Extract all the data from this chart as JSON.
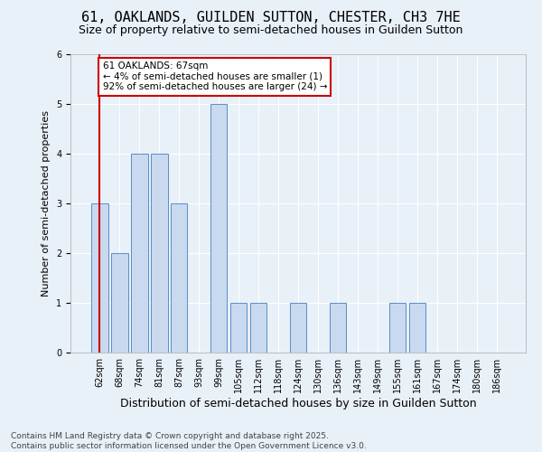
{
  "title": "61, OAKLANDS, GUILDEN SUTTON, CHESTER, CH3 7HE",
  "subtitle": "Size of property relative to semi-detached houses in Guilden Sutton",
  "xlabel": "Distribution of semi-detached houses by size in Guilden Sutton",
  "ylabel": "Number of semi-detached properties",
  "categories": [
    "62sqm",
    "68sqm",
    "74sqm",
    "81sqm",
    "87sqm",
    "93sqm",
    "99sqm",
    "105sqm",
    "112sqm",
    "118sqm",
    "124sqm",
    "130sqm",
    "136sqm",
    "143sqm",
    "149sqm",
    "155sqm",
    "161sqm",
    "167sqm",
    "174sqm",
    "180sqm",
    "186sqm"
  ],
  "values": [
    3,
    2,
    4,
    4,
    3,
    0,
    5,
    1,
    1,
    0,
    1,
    0,
    1,
    0,
    0,
    1,
    1,
    0,
    0,
    0,
    0
  ],
  "bar_color": "#c9d9f0",
  "bar_edge_color": "#5b8ec4",
  "background_color": "#e8f0f8",
  "annotation_text": "61 OAKLANDS: 67sqm\n← 4% of semi-detached houses are smaller (1)\n92% of semi-detached houses are larger (24) →",
  "annotation_box_facecolor": "#ffffff",
  "annotation_border_color": "#cc0000",
  "marker_line_index": 0,
  "marker_line_color": "#cc0000",
  "footer_text": "Contains HM Land Registry data © Crown copyright and database right 2025.\nContains public sector information licensed under the Open Government Licence v3.0.",
  "ylim": [
    0,
    6
  ],
  "title_fontsize": 11,
  "subtitle_fontsize": 9,
  "xlabel_fontsize": 9,
  "ylabel_fontsize": 8,
  "tick_fontsize": 7,
  "annotation_fontsize": 7.5,
  "footer_fontsize": 6.5
}
